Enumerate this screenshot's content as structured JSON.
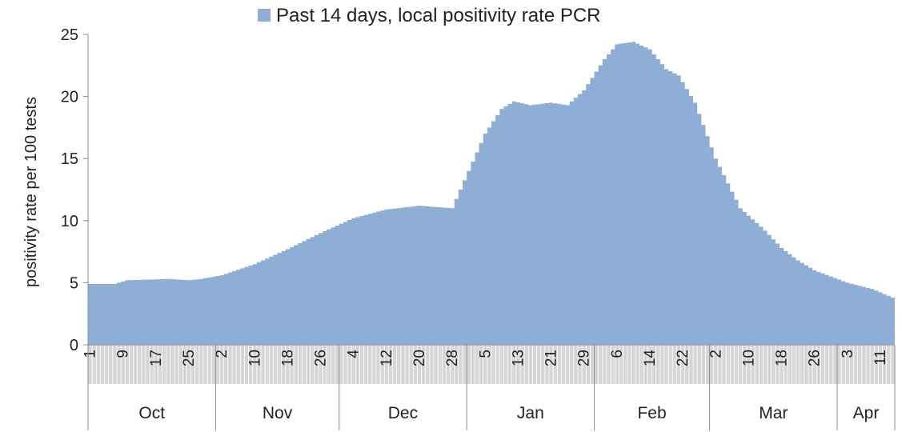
{
  "chart_data": {
    "type": "area",
    "title": "",
    "ylabel": "positivity rate per 100 tests",
    "xlabel": "",
    "ylim": [
      0,
      25
    ],
    "yticks": [
      0,
      5,
      10,
      15,
      20,
      25
    ],
    "grid": false,
    "legend_position": "top",
    "color": "#8FAED6",
    "series": [
      {
        "name": "Past 14 days, local positivity rate PCR",
        "anchors": [
          {
            "date": "2020-10-01",
            "y": 4.9
          },
          {
            "date": "2020-10-07",
            "y": 4.9
          },
          {
            "date": "2020-10-10",
            "y": 5.2
          },
          {
            "date": "2020-10-20",
            "y": 5.3
          },
          {
            "date": "2020-10-25",
            "y": 5.2
          },
          {
            "date": "2020-10-28",
            "y": 5.3
          },
          {
            "date": "2020-11-02",
            "y": 5.6
          },
          {
            "date": "2020-11-10",
            "y": 6.5
          },
          {
            "date": "2020-11-18",
            "y": 7.7
          },
          {
            "date": "2020-11-26",
            "y": 9.0
          },
          {
            "date": "2020-12-04",
            "y": 10.2
          },
          {
            "date": "2020-12-12",
            "y": 10.9
          },
          {
            "date": "2020-12-20",
            "y": 11.2
          },
          {
            "date": "2020-12-28",
            "y": 11.0
          },
          {
            "date": "2021-01-01",
            "y": 14.0
          },
          {
            "date": "2021-01-05",
            "y": 17.0
          },
          {
            "date": "2021-01-09",
            "y": 19.0
          },
          {
            "date": "2021-01-12",
            "y": 19.6
          },
          {
            "date": "2021-01-16",
            "y": 19.3
          },
          {
            "date": "2021-01-21",
            "y": 19.5
          },
          {
            "date": "2021-01-25",
            "y": 19.3
          },
          {
            "date": "2021-01-29",
            "y": 20.5
          },
          {
            "date": "2021-02-03",
            "y": 23.0
          },
          {
            "date": "2021-02-06",
            "y": 24.2
          },
          {
            "date": "2021-02-10",
            "y": 24.4
          },
          {
            "date": "2021-02-14",
            "y": 23.8
          },
          {
            "date": "2021-02-18",
            "y": 22.2
          },
          {
            "date": "2021-02-21",
            "y": 21.7
          },
          {
            "date": "2021-02-25",
            "y": 19.5
          },
          {
            "date": "2021-03-02",
            "y": 15.0
          },
          {
            "date": "2021-03-08",
            "y": 11.0
          },
          {
            "date": "2021-03-14",
            "y": 9.2
          },
          {
            "date": "2021-03-18",
            "y": 7.8
          },
          {
            "date": "2021-03-22",
            "y": 6.8
          },
          {
            "date": "2021-03-26",
            "y": 6.0
          },
          {
            "date": "2021-04-03",
            "y": 5.0
          },
          {
            "date": "2021-04-09",
            "y": 4.5
          },
          {
            "date": "2021-04-14",
            "y": 3.8
          }
        ]
      }
    ],
    "x_range": [
      "2020-10-01",
      "2021-04-14"
    ],
    "x_tick_labels": [
      {
        "date": "2020-10-01",
        "label": "1"
      },
      {
        "date": "2020-10-09",
        "label": "9"
      },
      {
        "date": "2020-10-17",
        "label": "17"
      },
      {
        "date": "2020-10-25",
        "label": "25"
      },
      {
        "date": "2020-11-02",
        "label": "2"
      },
      {
        "date": "2020-11-10",
        "label": "10"
      },
      {
        "date": "2020-11-18",
        "label": "18"
      },
      {
        "date": "2020-11-26",
        "label": "26"
      },
      {
        "date": "2020-12-04",
        "label": "4"
      },
      {
        "date": "2020-12-12",
        "label": "12"
      },
      {
        "date": "2020-12-20",
        "label": "20"
      },
      {
        "date": "2020-12-28",
        "label": "28"
      },
      {
        "date": "2021-01-05",
        "label": "5"
      },
      {
        "date": "2021-01-13",
        "label": "13"
      },
      {
        "date": "2021-01-21",
        "label": "21"
      },
      {
        "date": "2021-01-29",
        "label": "29"
      },
      {
        "date": "2021-02-06",
        "label": "6"
      },
      {
        "date": "2021-02-14",
        "label": "14"
      },
      {
        "date": "2021-02-22",
        "label": "22"
      },
      {
        "date": "2021-03-02",
        "label": "2"
      },
      {
        "date": "2021-03-10",
        "label": "10"
      },
      {
        "date": "2021-03-18",
        "label": "18"
      },
      {
        "date": "2021-03-26",
        "label": "26"
      },
      {
        "date": "2021-04-03",
        "label": "3"
      },
      {
        "date": "2021-04-11",
        "label": "11"
      }
    ],
    "months": [
      {
        "label": "Oct",
        "start": "2020-10-01",
        "end": "2020-10-31"
      },
      {
        "label": "Nov",
        "start": "2020-11-01",
        "end": "2020-11-30"
      },
      {
        "label": "Dec",
        "start": "2020-12-01",
        "end": "2020-12-31"
      },
      {
        "label": "Jan",
        "start": "2021-01-01",
        "end": "2021-01-31"
      },
      {
        "label": "Feb",
        "start": "2021-02-01",
        "end": "2021-02-28"
      },
      {
        "label": "Mar",
        "start": "2021-03-01",
        "end": "2021-03-31"
      },
      {
        "label": "Apr",
        "start": "2021-04-01",
        "end": "2021-04-14"
      }
    ]
  }
}
